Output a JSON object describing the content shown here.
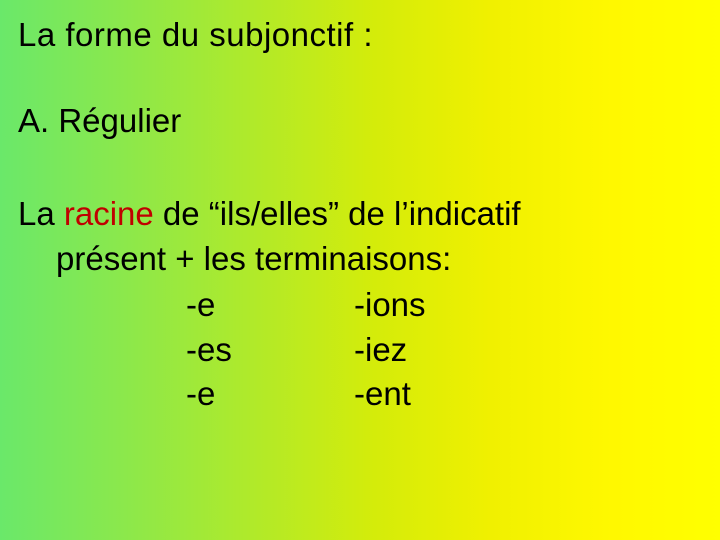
{
  "colors": {
    "text": "#000000",
    "accent_red": "#c00000",
    "gradient_stops": [
      "#6ae86a",
      "#8de84a",
      "#b0ea2a",
      "#d4ec0a",
      "#f0f000",
      "#fff800",
      "#ffff00"
    ]
  },
  "typography": {
    "font_family": "Comic Sans MS",
    "title_fontsize_pt": 25,
    "body_fontsize_pt": 25
  },
  "title": "La forme du subjonctif :",
  "section_label": "A. Régulier",
  "description": {
    "prefix": "La ",
    "racine_word": "racine",
    "after_racine": " de “ils/elles” de l’indicatif",
    "line2": "présent + les terminaisons:"
  },
  "endings": {
    "left": [
      "-e",
      "-es",
      "-e"
    ],
    "right": [
      "-ions",
      "-iez",
      "-ent"
    ]
  }
}
